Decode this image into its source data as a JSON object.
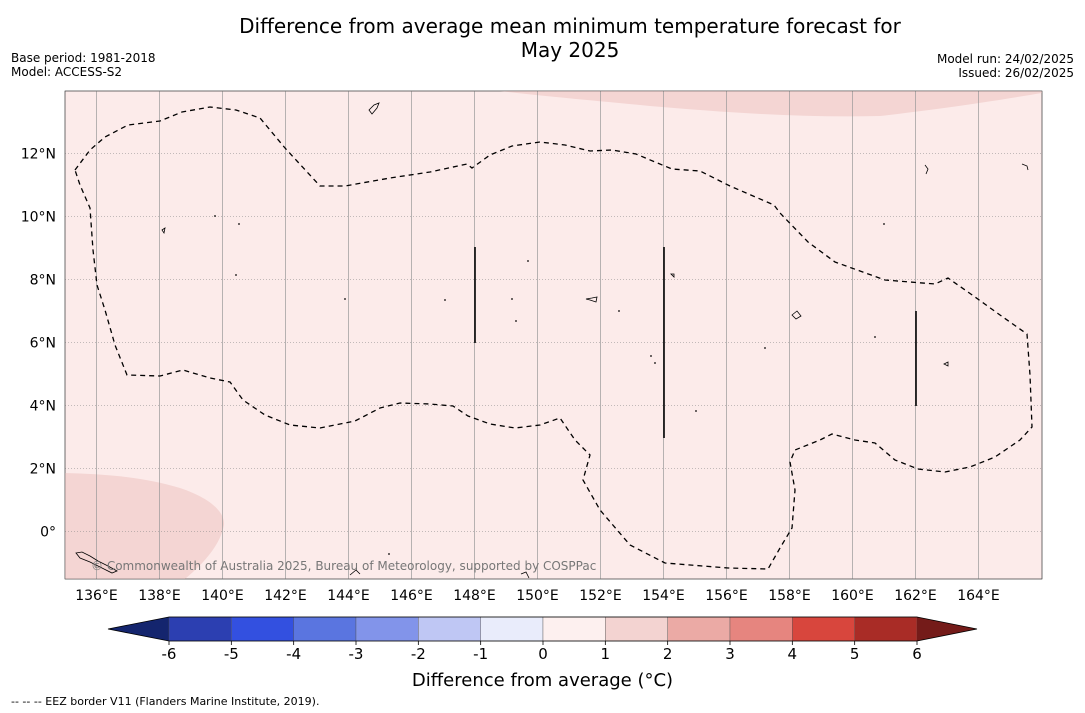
{
  "title_line1": "Difference from average mean minimum temperature forecast for",
  "title_line2": "May 2025",
  "base_period": "Base period: 1981-2018",
  "model": "Model: ACCESS-S2",
  "model_run": "Model run: 24/02/2025",
  "issued": "Issued: 26/02/2025",
  "credit": "© Commonwealth of Australia 2025, Bureau of Meteorology, supported by COSPPac",
  "colorbar_title": "Difference from average (°C)",
  "footer": "--  --  -- EEZ border V11 (Flanders Marine Institute, 2019).",
  "map": {
    "x_ticks": [
      "136°E",
      "138°E",
      "140°E",
      "142°E",
      "144°E",
      "146°E",
      "148°E",
      "150°E",
      "152°E",
      "154°E",
      "156°E",
      "158°E",
      "160°E",
      "162°E",
      "164°E"
    ],
    "y_ticks": [
      "12°N",
      "10°N",
      "8°N",
      "6°N",
      "4°N",
      "2°N",
      "0°"
    ],
    "background_color": "#fcebea",
    "warmer_region_color": "#f4d5d3"
  },
  "colorbar": {
    "labels": [
      "-6",
      "-5",
      "-4",
      "-3",
      "-2",
      "-1",
      "0",
      "1",
      "2",
      "3",
      "4",
      "5",
      "6"
    ],
    "colors": [
      "#263e9e",
      "#2c3fb1",
      "#3350e0",
      "#5a75e0",
      "#8294ea",
      "#bfc7f4",
      "#e9ecfb",
      "#fdf0ef",
      "#f3d3d1",
      "#ebaaa5",
      "#e6857f",
      "#d8463d",
      "#a92c26",
      "#741b19"
    ],
    "under_color": "#14256e",
    "over_color": "#741b19"
  }
}
